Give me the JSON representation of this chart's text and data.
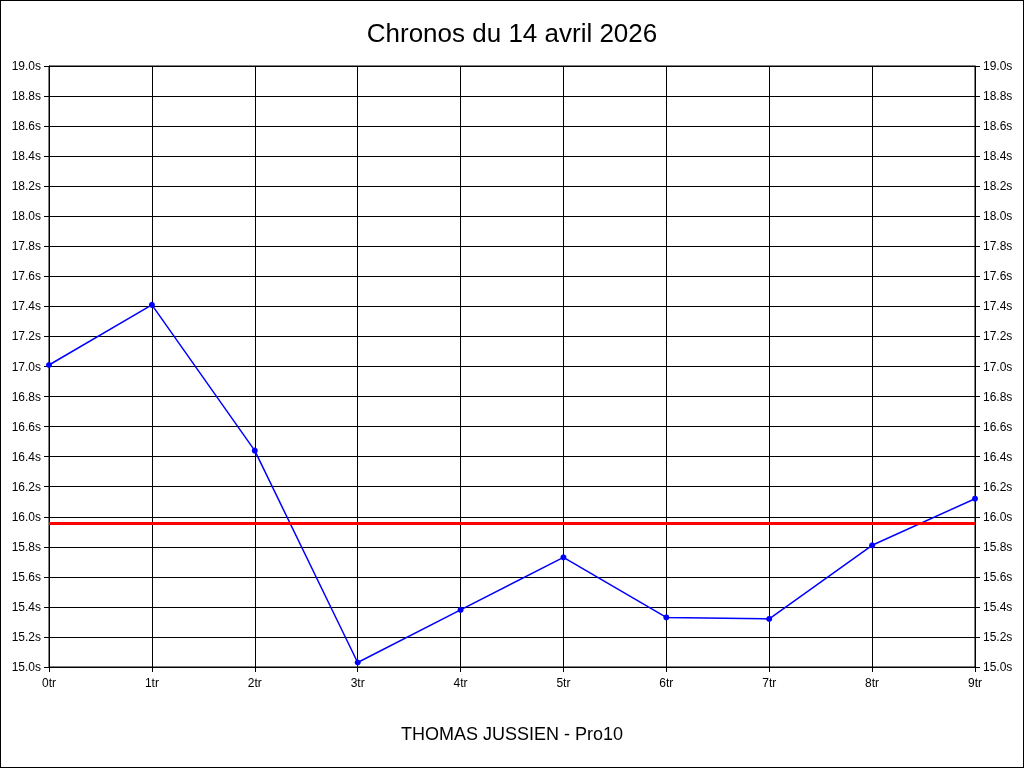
{
  "chart_data": {
    "type": "line",
    "title": "Chronos du 14 avril 2026",
    "annotations": [
      "THOMAS JUSSIEN - Pro10"
    ],
    "categories": [
      "0tr",
      "1tr",
      "2tr",
      "3tr",
      "4tr",
      "5tr",
      "6tr",
      "7tr",
      "8tr",
      "9tr"
    ],
    "series": [
      {
        "color": "#0000ff",
        "values": [
          17.01,
          17.41,
          16.44,
          15.03,
          15.38,
          15.73,
          15.33,
          15.32,
          15.81,
          16.12
        ]
      }
    ],
    "ref_lines": [
      {
        "axis": "y",
        "value": 15.96,
        "color": "#ff0000"
      }
    ],
    "ylim": [
      15.0,
      19.0
    ],
    "yticks": [
      {
        "value": 15.0,
        "label": "15.0s"
      },
      {
        "value": 15.2,
        "label": "15.2s"
      },
      {
        "value": 15.4,
        "label": "15.4s"
      },
      {
        "value": 15.6,
        "label": "15.6s"
      },
      {
        "value": 15.8,
        "label": "15.8s"
      },
      {
        "value": 16.0,
        "label": "16.0s"
      },
      {
        "value": 16.2,
        "label": "16.2s"
      },
      {
        "value": 16.4,
        "label": "16.4s"
      },
      {
        "value": 16.6,
        "label": "16.6s"
      },
      {
        "value": 16.8,
        "label": "16.8s"
      },
      {
        "value": 17.0,
        "label": "17.0s"
      },
      {
        "value": 17.2,
        "label": "17.2s"
      },
      {
        "value": 17.4,
        "label": "17.4s"
      },
      {
        "value": 17.6,
        "label": "17.6s"
      },
      {
        "value": 17.8,
        "label": "17.8s"
      },
      {
        "value": 18.0,
        "label": "18.0s"
      },
      {
        "value": 18.2,
        "label": "18.2s"
      },
      {
        "value": 18.4,
        "label": "18.4s"
      },
      {
        "value": 18.6,
        "label": "18.6s"
      },
      {
        "value": 18.8,
        "label": "18.8s"
      },
      {
        "value": 19.0,
        "label": "19.0s"
      }
    ],
    "y2lim": [
      15.0,
      19.0
    ],
    "y2ticks": [
      {
        "value": 15.0,
        "label": "15.0s"
      },
      {
        "value": 15.2,
        "label": "15.2s"
      },
      {
        "value": 15.4,
        "label": "15.4s"
      },
      {
        "value": 15.6,
        "label": "15.6s"
      },
      {
        "value": 15.8,
        "label": "15.8s"
      },
      {
        "value": 16.0,
        "label": "16.0s"
      },
      {
        "value": 16.2,
        "label": "16.2s"
      },
      {
        "value": 16.4,
        "label": "16.4s"
      },
      {
        "value": 16.6,
        "label": "16.6s"
      },
      {
        "value": 16.8,
        "label": "16.8s"
      },
      {
        "value": 17.0,
        "label": "17.0s"
      },
      {
        "value": 17.2,
        "label": "17.2s"
      },
      {
        "value": 17.4,
        "label": "17.4s"
      },
      {
        "value": 17.6,
        "label": "17.6s"
      },
      {
        "value": 17.8,
        "label": "17.8s"
      },
      {
        "value": 18.0,
        "label": "18.0s"
      },
      {
        "value": 18.2,
        "label": "18.2s"
      },
      {
        "value": 18.4,
        "label": "18.4s"
      },
      {
        "value": 18.6,
        "label": "18.6s"
      },
      {
        "value": 18.8,
        "label": "18.8s"
      },
      {
        "value": 19.0,
        "label": "19.0s"
      }
    ],
    "grid": true,
    "marker": "circle",
    "line_style": "solid"
  }
}
